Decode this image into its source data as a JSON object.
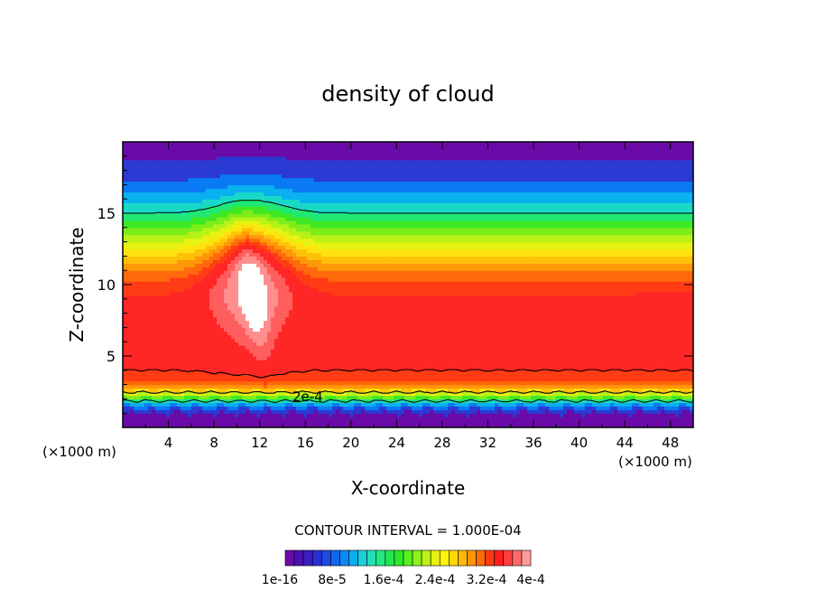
{
  "chart_data": {
    "type": "heatmap",
    "title": "density of cloud",
    "xlabel": "X-coordinate",
    "ylabel": "Z-coordinate",
    "x_unit_left": "(×1000 m)",
    "x_unit_right": "(×1000 m)",
    "xlim": [
      0,
      50
    ],
    "ylim": [
      0,
      20
    ],
    "x_ticks": [
      4,
      8,
      12,
      16,
      20,
      24,
      28,
      32,
      36,
      40,
      44,
      48
    ],
    "y_ticks": [
      5,
      10,
      15
    ],
    "contour_interval_text": "CONTOUR INTERVAL = 1.000E-04",
    "contour_label": "2e-4",
    "colorbar": {
      "labels": [
        "1e-16",
        "8e-5",
        "1.6e-4",
        "2.4e-4",
        "3.2e-4",
        "4e-4"
      ],
      "colors": [
        "#6a0aa8",
        "#4b0fb4",
        "#3a1ec2",
        "#2a2fd2",
        "#1e4ae0",
        "#1166ee",
        "#0a8af6",
        "#0aaff0",
        "#1ad0dc",
        "#22e0b4",
        "#22e882",
        "#22e852",
        "#2ce82a",
        "#5af01e",
        "#8cf21a",
        "#bdf216",
        "#e6f212",
        "#fff40e",
        "#ffd80c",
        "#ffb80a",
        "#ff9408",
        "#ff6a0c",
        "#ff3a14",
        "#ff1c1c",
        "#ff4040",
        "#ff6a6a",
        "#ff9a9a"
      ]
    },
    "bands": [
      {
        "level": 0.0004,
        "color": "#ffffff"
      },
      {
        "level": 0.00036,
        "color": "#ff8e8e"
      },
      {
        "level": 0.00033,
        "color": "#ff5e5e"
      },
      {
        "level": 0.0003,
        "color": "#ff2626"
      },
      {
        "level": 0.00028,
        "color": "#ff3c14"
      },
      {
        "level": 0.00026,
        "color": "#ff6a0c"
      },
      {
        "level": 0.00024,
        "color": "#ff9808"
      },
      {
        "level": 0.00022,
        "color": "#ffc00a"
      },
      {
        "level": 0.0002,
        "color": "#ffe20e"
      },
      {
        "level": 0.00018,
        "color": "#e8f212"
      },
      {
        "level": 0.00016,
        "color": "#b8f216"
      },
      {
        "level": 0.00014,
        "color": "#7eee1a"
      },
      {
        "level": 0.00012,
        "color": "#3ee824"
      },
      {
        "level": 0.0001,
        "color": "#20e874"
      },
      {
        "level": 8e-05,
        "color": "#1ad8c8"
      },
      {
        "level": 6e-05,
        "color": "#0ab0f0"
      },
      {
        "level": 4e-05,
        "color": "#0a7af4"
      },
      {
        "level": 2e-05,
        "color": "#2a3ad2"
      },
      {
        "level": 0,
        "color": "#6a0aa8"
      }
    ]
  }
}
